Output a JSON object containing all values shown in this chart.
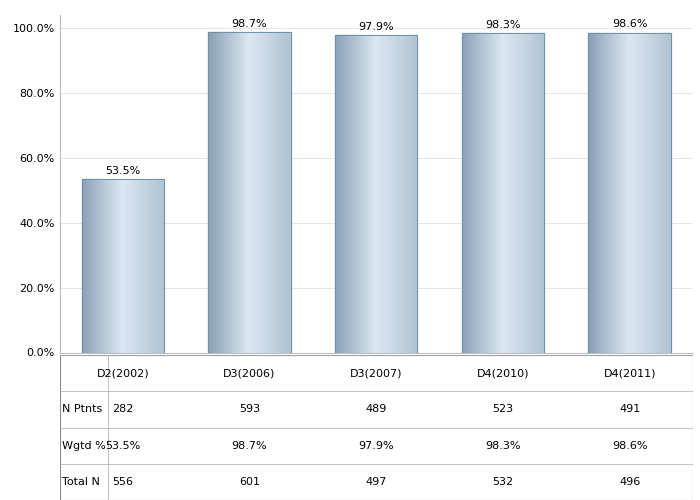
{
  "categories": [
    "D2(2002)",
    "D3(2006)",
    "D3(2007)",
    "D4(2010)",
    "D4(2011)"
  ],
  "values": [
    53.5,
    98.7,
    97.9,
    98.3,
    98.6
  ],
  "n_ptnts": [
    282,
    593,
    489,
    523,
    491
  ],
  "wgtd_pct": [
    "53.5%",
    "98.7%",
    "97.9%",
    "98.3%",
    "98.6%"
  ],
  "total_n": [
    556,
    601,
    497,
    532,
    496
  ],
  "ylim": [
    0,
    100
  ],
  "yticks": [
    0,
    20,
    40,
    60,
    80,
    100
  ],
  "yticklabels": [
    "0.0%",
    "20.0%",
    "40.0%",
    "60.0%",
    "80.0%",
    "100.0%"
  ],
  "table_row_labels": [
    "N Ptnts",
    "Wgtd %",
    "Total N"
  ],
  "bar_width": 0.65,
  "bg_color": "#ffffff",
  "grid_color": "#e0e0e0",
  "label_fontsize": 8,
  "table_fontsize": 8,
  "gradient_left": "#8aa0b8",
  "gradient_mid": "#dce8f2",
  "gradient_right": "#b0c4d4",
  "bar_edge_color": "#7090a8"
}
